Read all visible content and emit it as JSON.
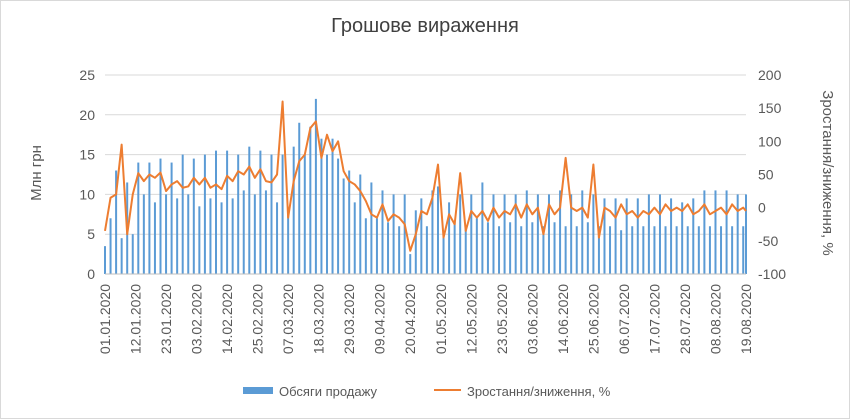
{
  "chart_data": {
    "type": "bar+line",
    "title": "Грошове вираження",
    "ylabel_left": "Млн грн",
    "ylabel_right": "Зростання/зниження, %",
    "ylim_left": [
      0,
      25
    ],
    "yticks_left": [
      "0",
      "5",
      "10",
      "15",
      "20",
      "25"
    ],
    "ylim_right": [
      -100,
      200
    ],
    "yticks_right": [
      "-100",
      "-50",
      "0",
      "50",
      "100",
      "150",
      "200"
    ],
    "x_start": "2020-01-01",
    "x_end": "2020-08-19",
    "xtick_labels": [
      "01.01.2020",
      "12.01.2020",
      "23.01.2020",
      "03.02.2020",
      "14.02.2020",
      "25.02.2020",
      "07.03.2020",
      "18.03.2020",
      "29.03.2020",
      "09.04.2020",
      "20.04.2020",
      "01.05.2020",
      "12.05.2020",
      "23.05.2020",
      "03.06.2020",
      "14.06.2020",
      "25.06.2020",
      "06.07.2020",
      "17.07.2020",
      "28.07.2020",
      "08.08.2020",
      "19.08.2020"
    ],
    "legend_position": "bottom",
    "colors": {
      "bars": "#5b9bd5",
      "line": "#ed7d31",
      "grid": "#d9d9d9",
      "text": "#595959"
    },
    "series": [
      {
        "name": "Обсяги продажу",
        "type": "bar",
        "axis": "left",
        "points": [
          [
            "2020-01-01",
            3.5
          ],
          [
            "2020-01-03",
            7
          ],
          [
            "2020-01-05",
            13
          ],
          [
            "2020-01-07",
            4.5
          ],
          [
            "2020-01-09",
            11.5
          ],
          [
            "2020-01-11",
            5
          ],
          [
            "2020-01-13",
            14
          ],
          [
            "2020-01-15",
            10
          ],
          [
            "2020-01-17",
            14
          ],
          [
            "2020-01-19",
            9
          ],
          [
            "2020-01-21",
            14.5
          ],
          [
            "2020-01-23",
            10
          ],
          [
            "2020-01-25",
            14
          ],
          [
            "2020-01-27",
            9.5
          ],
          [
            "2020-01-29",
            15
          ],
          [
            "2020-01-31",
            10
          ],
          [
            "2020-02-02",
            14.5
          ],
          [
            "2020-02-04",
            8.5
          ],
          [
            "2020-02-06",
            15
          ],
          [
            "2020-02-08",
            9.5
          ],
          [
            "2020-02-10",
            15.5
          ],
          [
            "2020-02-12",
            9
          ],
          [
            "2020-02-14",
            15.5
          ],
          [
            "2020-02-16",
            9.5
          ],
          [
            "2020-02-18",
            15
          ],
          [
            "2020-02-20",
            10.5
          ],
          [
            "2020-02-22",
            16
          ],
          [
            "2020-02-24",
            10
          ],
          [
            "2020-02-26",
            15.5
          ],
          [
            "2020-02-28",
            10.5
          ],
          [
            "2020-03-01",
            15
          ],
          [
            "2020-03-03",
            9
          ],
          [
            "2020-03-05",
            15
          ],
          [
            "2020-03-07",
            8
          ],
          [
            "2020-03-09",
            16
          ],
          [
            "2020-03-11",
            19
          ],
          [
            "2020-03-13",
            15
          ],
          [
            "2020-03-15",
            18.5
          ],
          [
            "2020-03-17",
            22
          ],
          [
            "2020-03-19",
            17
          ],
          [
            "2020-03-21",
            15
          ],
          [
            "2020-03-23",
            17
          ],
          [
            "2020-03-25",
            14.5
          ],
          [
            "2020-03-27",
            12
          ],
          [
            "2020-03-29",
            13
          ],
          [
            "2020-03-31",
            9
          ],
          [
            "2020-04-02",
            12.5
          ],
          [
            "2020-04-04",
            7
          ],
          [
            "2020-04-06",
            11.5
          ],
          [
            "2020-04-08",
            7
          ],
          [
            "2020-04-10",
            10.5
          ],
          [
            "2020-04-12",
            6.5
          ],
          [
            "2020-04-14",
            10
          ],
          [
            "2020-04-16",
            6
          ],
          [
            "2020-04-18",
            10
          ],
          [
            "2020-04-20",
            2.5
          ],
          [
            "2020-04-22",
            8
          ],
          [
            "2020-04-24",
            9.5
          ],
          [
            "2020-04-26",
            6
          ],
          [
            "2020-04-28",
            10.5
          ],
          [
            "2020-04-30",
            11
          ],
          [
            "2020-05-02",
            5
          ],
          [
            "2020-05-04",
            9
          ],
          [
            "2020-05-06",
            6.5
          ],
          [
            "2020-05-08",
            10
          ],
          [
            "2020-05-10",
            6
          ],
          [
            "2020-05-12",
            10
          ],
          [
            "2020-05-14",
            7
          ],
          [
            "2020-05-16",
            11.5
          ],
          [
            "2020-05-18",
            6.5
          ],
          [
            "2020-05-20",
            10
          ],
          [
            "2020-05-22",
            6
          ],
          [
            "2020-05-24",
            10
          ],
          [
            "2020-05-26",
            6.5
          ],
          [
            "2020-05-28",
            10
          ],
          [
            "2020-05-30",
            6
          ],
          [
            "2020-06-01",
            10.5
          ],
          [
            "2020-06-03",
            6.5
          ],
          [
            "2020-06-05",
            10
          ],
          [
            "2020-06-07",
            6
          ],
          [
            "2020-06-09",
            10
          ],
          [
            "2020-06-11",
            6.5
          ],
          [
            "2020-06-13",
            10.5
          ],
          [
            "2020-06-15",
            6
          ],
          [
            "2020-06-17",
            10
          ],
          [
            "2020-06-19",
            6
          ],
          [
            "2020-06-21",
            10.5
          ],
          [
            "2020-06-23",
            6.5
          ],
          [
            "2020-06-25",
            10
          ],
          [
            "2020-06-27",
            6
          ],
          [
            "2020-06-29",
            9.5
          ],
          [
            "2020-07-01",
            6
          ],
          [
            "2020-07-03",
            9.5
          ],
          [
            "2020-07-05",
            5.5
          ],
          [
            "2020-07-07",
            9.5
          ],
          [
            "2020-07-09",
            6
          ],
          [
            "2020-07-11",
            9.5
          ],
          [
            "2020-07-13",
            6
          ],
          [
            "2020-07-15",
            10
          ],
          [
            "2020-07-17",
            6
          ],
          [
            "2020-07-19",
            10
          ],
          [
            "2020-07-21",
            6
          ],
          [
            "2020-07-23",
            9.5
          ],
          [
            "2020-07-25",
            6
          ],
          [
            "2020-07-27",
            9
          ],
          [
            "2020-07-29",
            6
          ],
          [
            "2020-07-31",
            9.5
          ],
          [
            "2020-08-02",
            6
          ],
          [
            "2020-08-04",
            10.5
          ],
          [
            "2020-08-06",
            6
          ],
          [
            "2020-08-08",
            10.5
          ],
          [
            "2020-08-10",
            6
          ],
          [
            "2020-08-12",
            10.5
          ],
          [
            "2020-08-14",
            6
          ],
          [
            "2020-08-16",
            10
          ],
          [
            "2020-08-18",
            6
          ],
          [
            "2020-08-19",
            10
          ]
        ]
      },
      {
        "name": "Зростання/зниження, %",
        "type": "line",
        "axis": "right",
        "points": [
          [
            "2020-01-01",
            -35
          ],
          [
            "2020-01-03",
            15
          ],
          [
            "2020-01-05",
            20
          ],
          [
            "2020-01-07",
            95
          ],
          [
            "2020-01-09",
            -40
          ],
          [
            "2020-01-11",
            20
          ],
          [
            "2020-01-13",
            52
          ],
          [
            "2020-01-15",
            40
          ],
          [
            "2020-01-17",
            50
          ],
          [
            "2020-01-19",
            45
          ],
          [
            "2020-01-21",
            53
          ],
          [
            "2020-01-23",
            25
          ],
          [
            "2020-01-25",
            35
          ],
          [
            "2020-01-27",
            40
          ],
          [
            "2020-01-29",
            30
          ],
          [
            "2020-01-31",
            32
          ],
          [
            "2020-02-02",
            45
          ],
          [
            "2020-02-04",
            35
          ],
          [
            "2020-02-06",
            45
          ],
          [
            "2020-02-08",
            30
          ],
          [
            "2020-02-10",
            35
          ],
          [
            "2020-02-12",
            28
          ],
          [
            "2020-02-14",
            48
          ],
          [
            "2020-02-16",
            40
          ],
          [
            "2020-02-18",
            55
          ],
          [
            "2020-02-20",
            50
          ],
          [
            "2020-02-22",
            62
          ],
          [
            "2020-02-24",
            45
          ],
          [
            "2020-02-26",
            58
          ],
          [
            "2020-02-28",
            40
          ],
          [
            "2020-03-01",
            38
          ],
          [
            "2020-03-03",
            50
          ],
          [
            "2020-03-05",
            160
          ],
          [
            "2020-03-07",
            -15
          ],
          [
            "2020-03-09",
            40
          ],
          [
            "2020-03-11",
            70
          ],
          [
            "2020-03-13",
            80
          ],
          [
            "2020-03-15",
            120
          ],
          [
            "2020-03-17",
            130
          ],
          [
            "2020-03-19",
            75
          ],
          [
            "2020-03-21",
            110
          ],
          [
            "2020-03-23",
            85
          ],
          [
            "2020-03-25",
            100
          ],
          [
            "2020-03-27",
            55
          ],
          [
            "2020-03-29",
            40
          ],
          [
            "2020-03-31",
            35
          ],
          [
            "2020-04-02",
            25
          ],
          [
            "2020-04-04",
            10
          ],
          [
            "2020-04-06",
            -10
          ],
          [
            "2020-04-08",
            -15
          ],
          [
            "2020-04-10",
            5
          ],
          [
            "2020-04-12",
            -20
          ],
          [
            "2020-04-14",
            -10
          ],
          [
            "2020-04-16",
            -15
          ],
          [
            "2020-04-18",
            -25
          ],
          [
            "2020-04-20",
            -65
          ],
          [
            "2020-04-22",
            -40
          ],
          [
            "2020-04-24",
            -5
          ],
          [
            "2020-04-26",
            -10
          ],
          [
            "2020-04-28",
            15
          ],
          [
            "2020-04-30",
            65
          ],
          [
            "2020-05-02",
            -45
          ],
          [
            "2020-05-04",
            -10
          ],
          [
            "2020-05-06",
            -25
          ],
          [
            "2020-05-08",
            52
          ],
          [
            "2020-05-10",
            -35
          ],
          [
            "2020-05-12",
            -5
          ],
          [
            "2020-05-14",
            -15
          ],
          [
            "2020-05-16",
            -5
          ],
          [
            "2020-05-18",
            -20
          ],
          [
            "2020-05-20",
            0
          ],
          [
            "2020-05-22",
            -15
          ],
          [
            "2020-05-24",
            -5
          ],
          [
            "2020-05-26",
            -10
          ],
          [
            "2020-05-28",
            5
          ],
          [
            "2020-05-30",
            -15
          ],
          [
            "2020-06-01",
            5
          ],
          [
            "2020-06-03",
            -10
          ],
          [
            "2020-06-05",
            0
          ],
          [
            "2020-06-07",
            -40
          ],
          [
            "2020-06-09",
            5
          ],
          [
            "2020-06-11",
            -10
          ],
          [
            "2020-06-13",
            0
          ],
          [
            "2020-06-15",
            75
          ],
          [
            "2020-06-17",
            0
          ],
          [
            "2020-06-19",
            -5
          ],
          [
            "2020-06-21",
            0
          ],
          [
            "2020-06-23",
            -15
          ],
          [
            "2020-06-25",
            65
          ],
          [
            "2020-06-27",
            -45
          ],
          [
            "2020-06-29",
            0
          ],
          [
            "2020-07-01",
            -5
          ],
          [
            "2020-07-03",
            -15
          ],
          [
            "2020-07-05",
            5
          ],
          [
            "2020-07-07",
            -10
          ],
          [
            "2020-07-09",
            -5
          ],
          [
            "2020-07-11",
            -15
          ],
          [
            "2020-07-13",
            -5
          ],
          [
            "2020-07-15",
            -10
          ],
          [
            "2020-07-17",
            0
          ],
          [
            "2020-07-19",
            -10
          ],
          [
            "2020-07-21",
            5
          ],
          [
            "2020-07-23",
            -5
          ],
          [
            "2020-07-25",
            0
          ],
          [
            "2020-07-27",
            -5
          ],
          [
            "2020-07-29",
            5
          ],
          [
            "2020-07-31",
            -10
          ],
          [
            "2020-08-02",
            -5
          ],
          [
            "2020-08-04",
            5
          ],
          [
            "2020-08-06",
            -10
          ],
          [
            "2020-08-08",
            -5
          ],
          [
            "2020-08-10",
            0
          ],
          [
            "2020-08-12",
            -10
          ],
          [
            "2020-08-14",
            5
          ],
          [
            "2020-08-16",
            -5
          ],
          [
            "2020-08-18",
            0
          ],
          [
            "2020-08-19",
            -5
          ]
        ]
      }
    ]
  }
}
